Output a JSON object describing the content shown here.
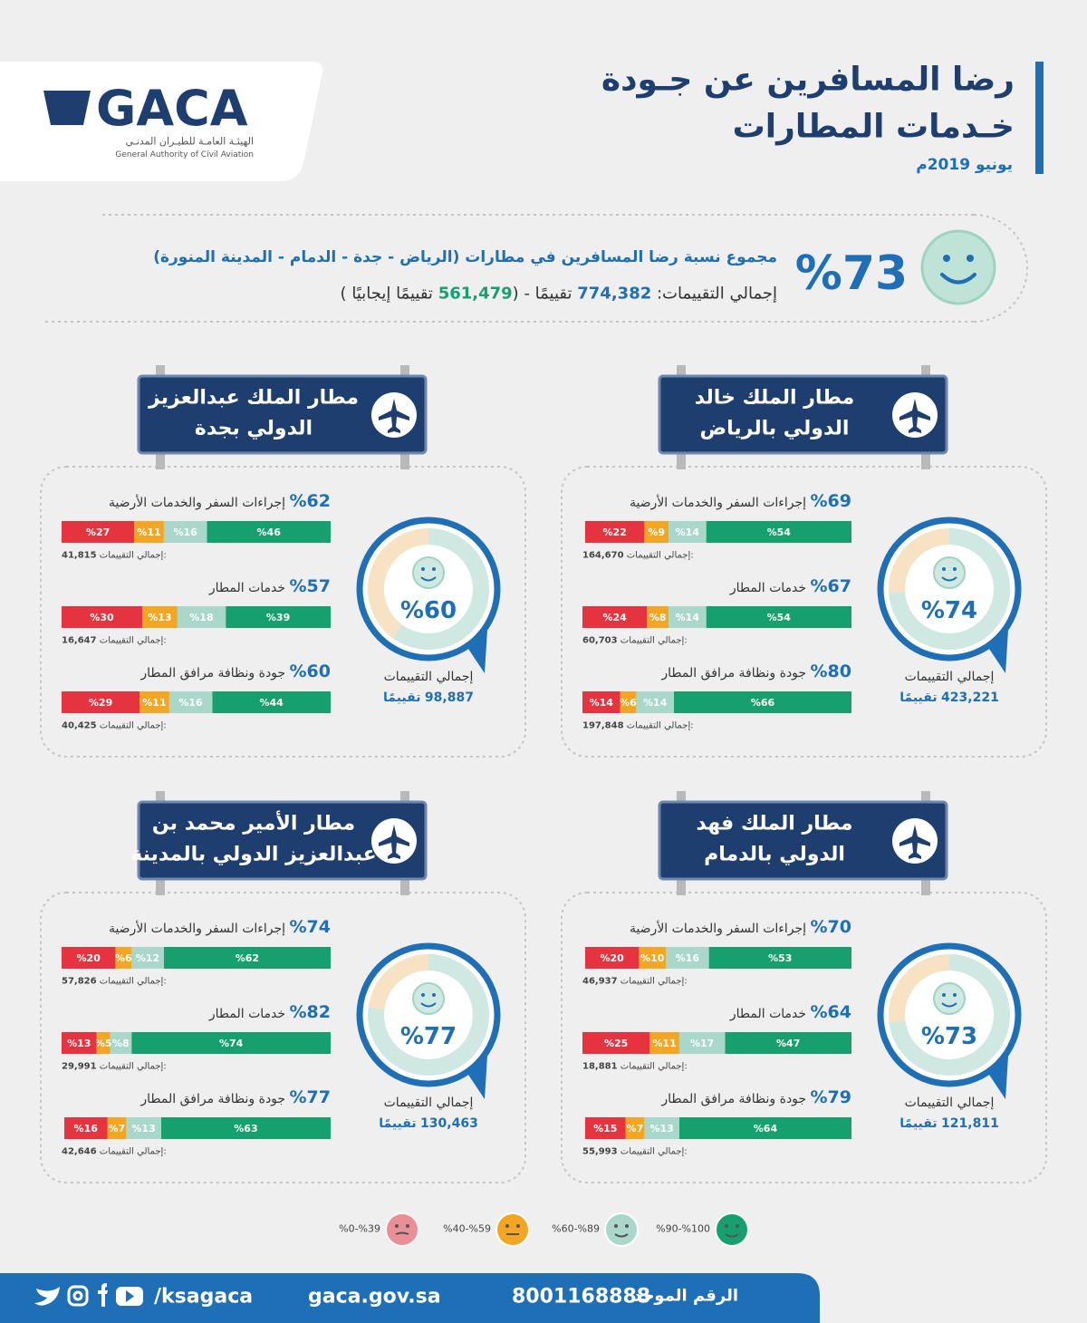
{
  "header": {
    "logo_text": "GACA",
    "logo_arabic": "الهيئـة العامـة للطيـران المدنـي",
    "logo_english": "General Authority of Civil Aviation",
    "title_line1": "رضا المسافرين عن جـودة",
    "title_line2": "خـدمات المطارات",
    "date": "يونيو 2019م"
  },
  "summary": {
    "percent": {
      "value": 73,
      "label": "%73"
    },
    "description": "مجموع نسبة رضا المسافرين في مطارات (الرياض - جدة - الدمام - المدينة المنورة)",
    "total_label": "إجمالي التقييمات:",
    "total": "774,382",
    "total_unit": "تقييمًا -",
    "positive": "561,479",
    "positive_unit": "تقييمًا إيجابيًا"
  },
  "labels": {
    "count": "إجمالي التقييمات:",
    "total": "إجمالي التقييمات",
    "unit": "تقييمًا"
  },
  "legend": [
    {
      "label": "%90-%100",
      "color": "#17a06f"
    },
    {
      "label": "%60-%89",
      "color": "#a9d7c9"
    },
    {
      "label": "%40-%59",
      "color": "#f4a623"
    },
    {
      "label": "%0-%39",
      "color": "#e5343f"
    }
  ],
  "airports": [
    {
      "name_line1": "مطار الملك خالد",
      "name_line2": "الدولي بالرياض",
      "overall": {
        "value": 74,
        "label": "%74"
      },
      "total": "423,221",
      "metrics": [
        {
          "percent": {
            "value": 69,
            "label": "%69"
          },
          "title": "إجراءات السفر والخدمات الأرضية",
          "segments": [
            {
              "value": 54,
              "label": "%54"
            },
            {
              "value": 14,
              "label": "%14"
            },
            {
              "value": 9,
              "label": "%9"
            },
            {
              "value": 22,
              "label": "%22"
            }
          ],
          "count": "164,670"
        },
        {
          "percent": {
            "value": 67,
            "label": "%67"
          },
          "title": "خدمات المطار",
          "segments": [
            {
              "value": 54,
              "label": "%54"
            },
            {
              "value": 14,
              "label": "%14"
            },
            {
              "value": 8,
              "label": "%8"
            },
            {
              "value": 24,
              "label": "%24"
            }
          ],
          "count": "60,703"
        },
        {
          "percent": {
            "value": 80,
            "label": "%80"
          },
          "title": "جودة ونظافة مرافق المطار",
          "segments": [
            {
              "value": 66,
              "label": "%66"
            },
            {
              "value": 14,
              "label": "%14"
            },
            {
              "value": 6,
              "label": "%6"
            },
            {
              "value": 14,
              "label": "%14"
            }
          ],
          "count": "197,848"
        }
      ]
    },
    {
      "name_line1": "مطار الملك عبدالعزيز",
      "name_line2": "الدولي بجدة",
      "overall": {
        "value": 60,
        "label": "%60"
      },
      "total": "98,887",
      "metrics": [
        {
          "percent": {
            "value": 62,
            "label": "%62"
          },
          "title": "إجراءات السفر والخدمات الأرضية",
          "segments": [
            {
              "value": 46,
              "label": "%46"
            },
            {
              "value": 16,
              "label": "%16"
            },
            {
              "value": 11,
              "label": "%11"
            },
            {
              "value": 27,
              "label": "%27"
            }
          ],
          "count": "41,815"
        },
        {
          "percent": {
            "value": 57,
            "label": "%57"
          },
          "title": "خدمات المطار",
          "segments": [
            {
              "value": 39,
              "label": "%39"
            },
            {
              "value": 18,
              "label": "%18"
            },
            {
              "value": 13,
              "label": "%13"
            },
            {
              "value": 30,
              "label": "%30"
            }
          ],
          "count": "16,647"
        },
        {
          "percent": {
            "value": 60,
            "label": "%60"
          },
          "title": "جودة ونظافة مرافق المطار",
          "segments": [
            {
              "value": 44,
              "label": "%44"
            },
            {
              "value": 16,
              "label": "%16"
            },
            {
              "value": 11,
              "label": "%11"
            },
            {
              "value": 29,
              "label": "%29"
            }
          ],
          "count": "40,425"
        }
      ]
    },
    {
      "name_line1": "مطار الملك فهد",
      "name_line2": "الدولي بالدمام",
      "overall": {
        "value": 73,
        "label": "%73"
      },
      "total": "121,811",
      "metrics": [
        {
          "percent": {
            "value": 70,
            "label": "%70"
          },
          "title": "إجراءات السفر والخدمات الأرضية",
          "segments": [
            {
              "value": 53,
              "label": "%53"
            },
            {
              "value": 16,
              "label": "%16"
            },
            {
              "value": 10,
              "label": "%10"
            },
            {
              "value": 20,
              "label": "%20"
            }
          ],
          "count": "46,937"
        },
        {
          "percent": {
            "value": 64,
            "label": "%64"
          },
          "title": "خدمات المطار",
          "segments": [
            {
              "value": 47,
              "label": "%47"
            },
            {
              "value": 17,
              "label": "%17"
            },
            {
              "value": 11,
              "label": "%11"
            },
            {
              "value": 25,
              "label": "%25"
            }
          ],
          "count": "18,881"
        },
        {
          "percent": {
            "value": 79,
            "label": "%79"
          },
          "title": "جودة ونظافة مرافق المطار",
          "segments": [
            {
              "value": 64,
              "label": "%64"
            },
            {
              "value": 13,
              "label": "%13"
            },
            {
              "value": 7,
              "label": "%7"
            },
            {
              "value": 15,
              "label": "%15"
            }
          ],
          "count": "55,993"
        }
      ]
    },
    {
      "name_line1": "مطار الأمير محمد بن",
      "name_line2": "عبدالعزيز الدولي بالمدينة",
      "overall": {
        "value": 77,
        "label": "%77"
      },
      "total": "130,463",
      "metrics": [
        {
          "percent": {
            "value": 74,
            "label": "%74"
          },
          "title": "إجراءات السفر والخدمات الأرضية",
          "segments": [
            {
              "value": 62,
              "label": "%62"
            },
            {
              "value": 12,
              "label": "%12"
            },
            {
              "value": 6,
              "label": "%6"
            },
            {
              "value": 20,
              "label": "%20"
            }
          ],
          "count": "57,826"
        },
        {
          "percent": {
            "value": 82,
            "label": "%82"
          },
          "title": "خدمات المطار",
          "segments": [
            {
              "value": 74,
              "label": "%74"
            },
            {
              "value": 8,
              "label": "%8"
            },
            {
              "value": 5,
              "label": "%5"
            },
            {
              "value": 13,
              "label": "%13"
            }
          ],
          "count": "29,991"
        },
        {
          "percent": {
            "value": 77,
            "label": "%77"
          },
          "title": "جودة ونظافة مرافق المطار",
          "segments": [
            {
              "value": 63,
              "label": "%63"
            },
            {
              "value": 13,
              "label": "%13"
            },
            {
              "value": 7,
              "label": "%7"
            },
            {
              "value": 16,
              "label": "%16"
            }
          ],
          "count": "42,646"
        }
      ]
    }
  ],
  "footer": {
    "hotline_label": "الرقم الموحد",
    "hotline": "8001168888",
    "website": "gaca.gov.sa",
    "handle": "/ksagaca"
  }
}
